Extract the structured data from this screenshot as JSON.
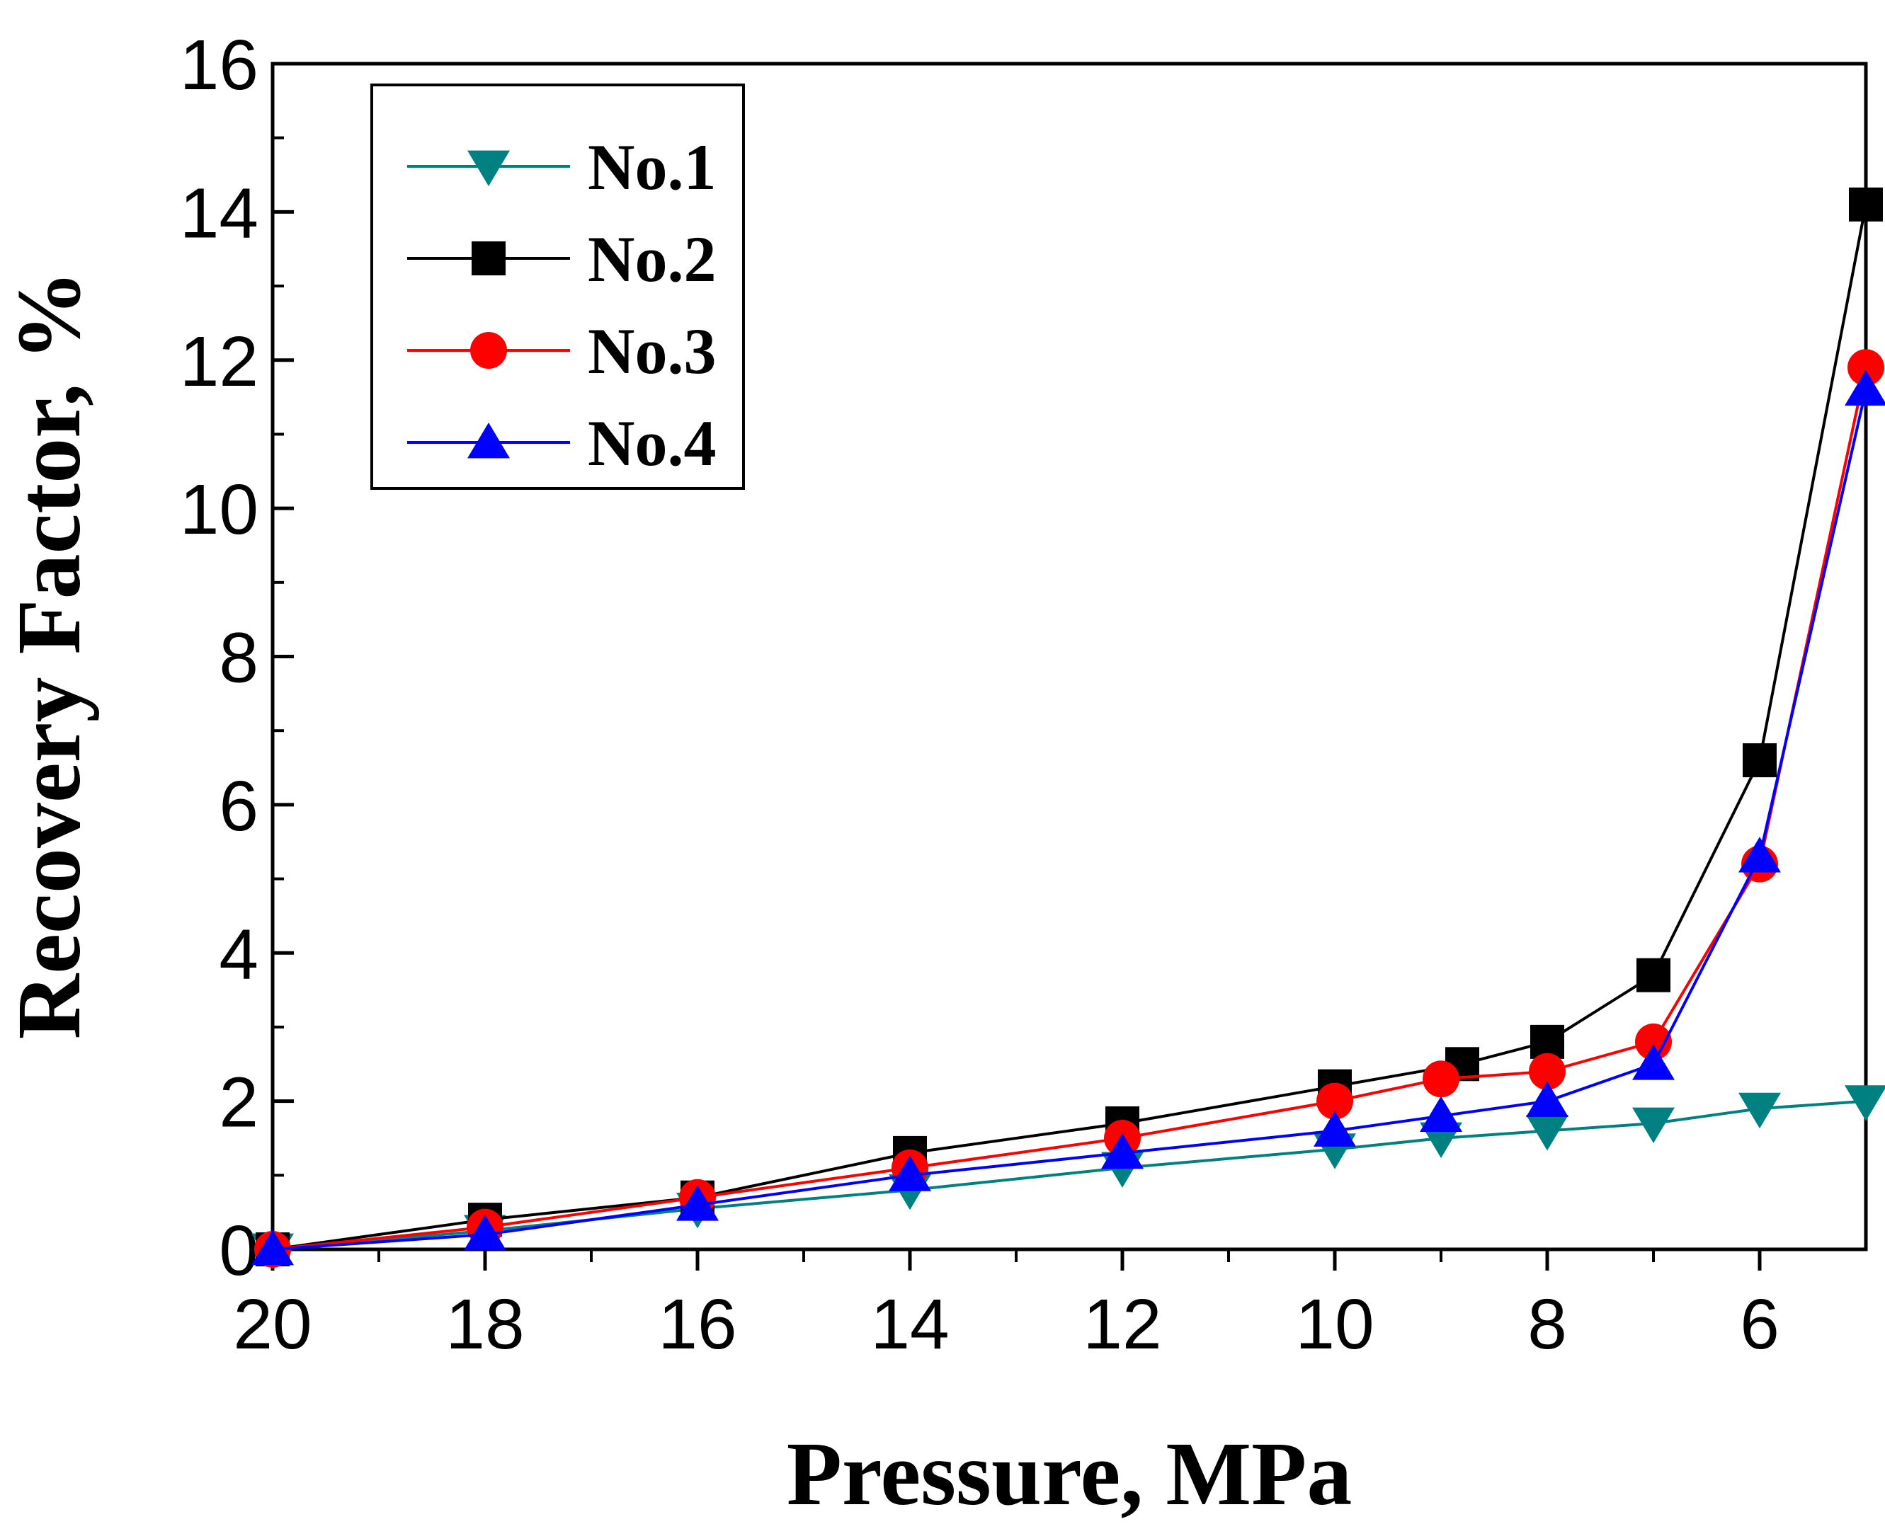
{
  "chart_data": {
    "type": "line",
    "xlabel": "Pressure, MPa",
    "ylabel": "Recovery Factor, %",
    "xlim": [
      20,
      5
    ],
    "ylim": [
      0,
      16
    ],
    "x_ticks": [
      "20",
      "18",
      "16",
      "14",
      "12",
      "10",
      "8",
      "6"
    ],
    "y_ticks": [
      "0",
      "2",
      "4",
      "6",
      "8",
      "10",
      "12",
      "14",
      "16"
    ],
    "grid": false,
    "legend_position": "top-left",
    "series": [
      {
        "name": "No.1",
        "color": "#008080",
        "marker": "triangle-down",
        "x": [
          20,
          18,
          16,
          14,
          12,
          10,
          9,
          8,
          7,
          6,
          5
        ],
        "y": [
          0,
          0.25,
          0.55,
          0.8,
          1.1,
          1.35,
          1.5,
          1.6,
          1.7,
          1.9,
          2.0
        ]
      },
      {
        "name": "No.2",
        "color": "#000000",
        "marker": "square",
        "x": [
          20,
          18,
          16,
          14,
          12,
          10,
          8.8,
          8,
          7,
          6,
          5
        ],
        "y": [
          0,
          0.4,
          0.7,
          1.3,
          1.7,
          2.2,
          2.5,
          2.8,
          3.7,
          6.6,
          14.1
        ]
      },
      {
        "name": "No.3",
        "color": "#ff0000",
        "marker": "circle",
        "x": [
          20,
          18,
          16,
          14,
          12,
          10,
          9,
          8,
          7,
          6,
          5
        ],
        "y": [
          0,
          0.3,
          0.7,
          1.1,
          1.5,
          2.0,
          2.3,
          2.4,
          2.8,
          5.2,
          11.9
        ]
      },
      {
        "name": "No.4",
        "color": "#0000ff",
        "marker": "triangle-up",
        "x": [
          20,
          18,
          16,
          14,
          12,
          10,
          9,
          8,
          7,
          6,
          5
        ],
        "y": [
          0,
          0.2,
          0.6,
          1.0,
          1.3,
          1.6,
          1.8,
          2.0,
          2.5,
          5.3,
          11.6
        ]
      }
    ]
  }
}
